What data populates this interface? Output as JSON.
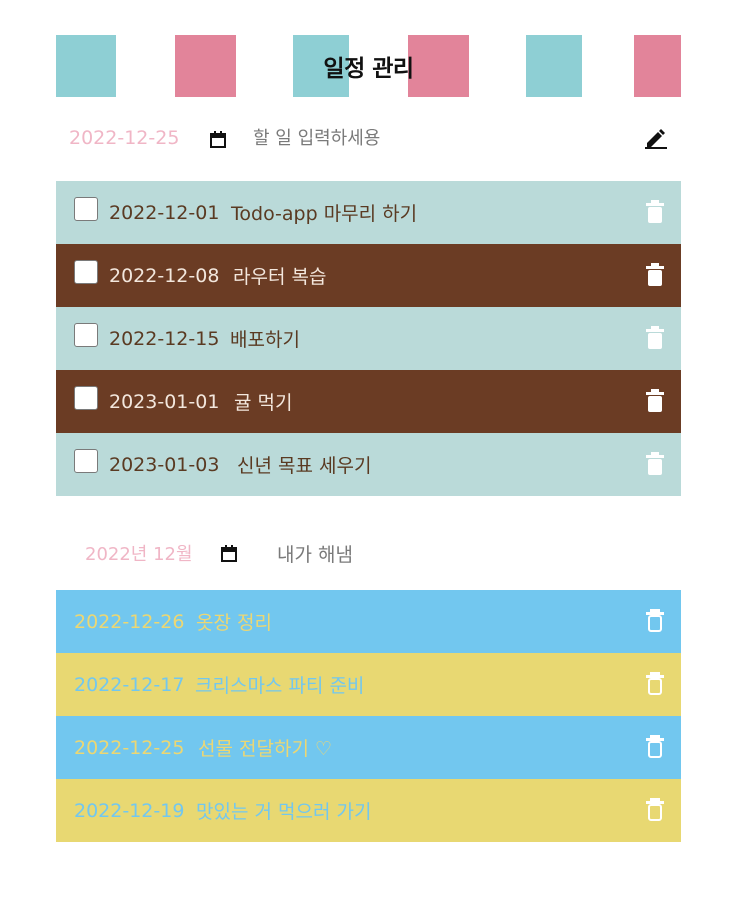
{
  "header": {
    "title": "일정 관리",
    "colors": {
      "teal": "#8ecfd4",
      "pink": "#e2849a"
    }
  },
  "input": {
    "date_value": "2022-12-25",
    "placeholder": "할 일 입력하세용",
    "calendar_icon": "calendar-icon",
    "submit_icon": "pencil-icon"
  },
  "todos": [
    {
      "date": "2022-12-01",
      "text": "Todo-app 마무리 하기",
      "checked": false
    },
    {
      "date": "2022-12-08",
      "text": "라우터 복습",
      "checked": false
    },
    {
      "date": "2022-12-15",
      "text": "배포하기",
      "checked": false
    },
    {
      "date": "2023-01-01",
      "text": "귤 먹기",
      "checked": false
    },
    {
      "date": "2023-01-03",
      "text": "신년 목표 세우기",
      "checked": false
    }
  ],
  "done_section": {
    "month_value": "2022년 12월",
    "label": "내가 해냄"
  },
  "done": [
    {
      "date": "2022-12-26",
      "text": "옷장 정리"
    },
    {
      "date": "2022-12-17",
      "text": "크리스마스 파티 준비"
    },
    {
      "date": "2022-12-25",
      "text": "선물 전달하기 ♡"
    },
    {
      "date": "2022-12-19",
      "text": "맛있는 거 먹으러 가기"
    }
  ]
}
